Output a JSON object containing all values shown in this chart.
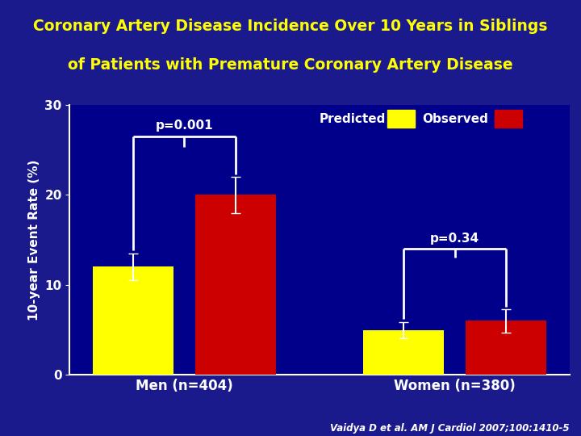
{
  "title_line1": "Coronary Artery Disease Incidence Over 10 Years in Siblings",
  "title_line2": "of Patients with Premature Coronary Artery Disease",
  "title_color": "#FFFF00",
  "title_bg_color": "#00008B",
  "plot_bg_color": "#00008B",
  "fig_bg_color": "#1a1a8c",
  "categories": [
    "Men (n=404)",
    "Women (n=380)"
  ],
  "predicted_values": [
    12.0,
    5.0
  ],
  "observed_values": [
    20.0,
    6.0
  ],
  "predicted_errors": [
    1.5,
    0.9
  ],
  "observed_errors": [
    2.0,
    1.3
  ],
  "predicted_color": "#FFFF00",
  "observed_color": "#CC0000",
  "ylabel": "10-year Event Rate (%)",
  "ylabel_color": "#FFFFFF",
  "ylim": [
    0,
    30
  ],
  "yticks": [
    0,
    10,
    20,
    30
  ],
  "tick_color": "#FFFFFF",
  "axis_color": "#FFFFFF",
  "legend_predicted_label": "Predicted",
  "legend_observed_label": "Observed",
  "legend_text_color": "#FFFFFF",
  "p_value_men": "p=0.001",
  "p_value_women": "p=0.34",
  "p_value_color": "#FFFFFF",
  "citation": "Vaidya D et al. AM J Cardiol 2007;100:1410-5",
  "citation_color": "#FFFFFF",
  "bar_width": 0.3,
  "separator_color": "#CC0000"
}
